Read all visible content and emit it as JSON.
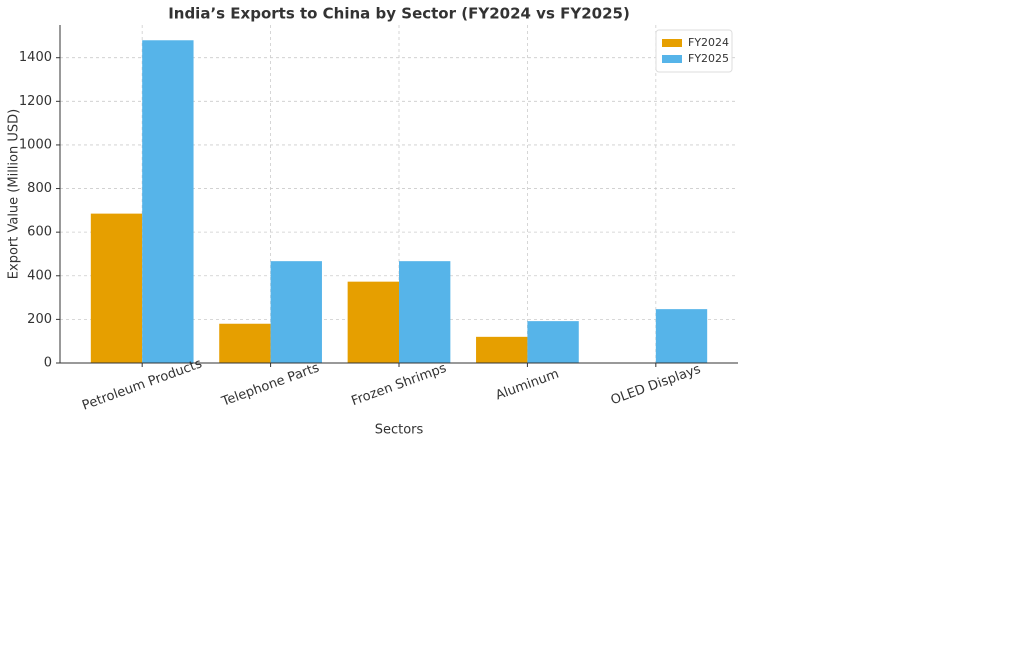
{
  "chart_data": {
    "type": "bar",
    "title": "India’s Exports to China by Sector (FY2024 vs FY2025)",
    "x_label": "Sectors",
    "y_label": "Export Value (Million USD)",
    "categories": [
      "Petroleum Products",
      "Telephone Parts",
      "Frozen Shrimps",
      "Aluminum",
      "OLED Displays"
    ],
    "series": [
      {
        "name": "FY2024",
        "color": "#e69f00",
        "values": [
          685,
          180,
          373,
          120,
          0
        ]
      },
      {
        "name": "FY2025",
        "color": "#56b4e9",
        "values": [
          1480,
          467,
          467,
          192,
          247
        ]
      }
    ],
    "ylim": [
      0,
      1550
    ],
    "yticks": [
      0,
      200,
      400,
      600,
      800,
      1000,
      1200,
      1400
    ],
    "grid": true,
    "legend": "upper-right"
  }
}
